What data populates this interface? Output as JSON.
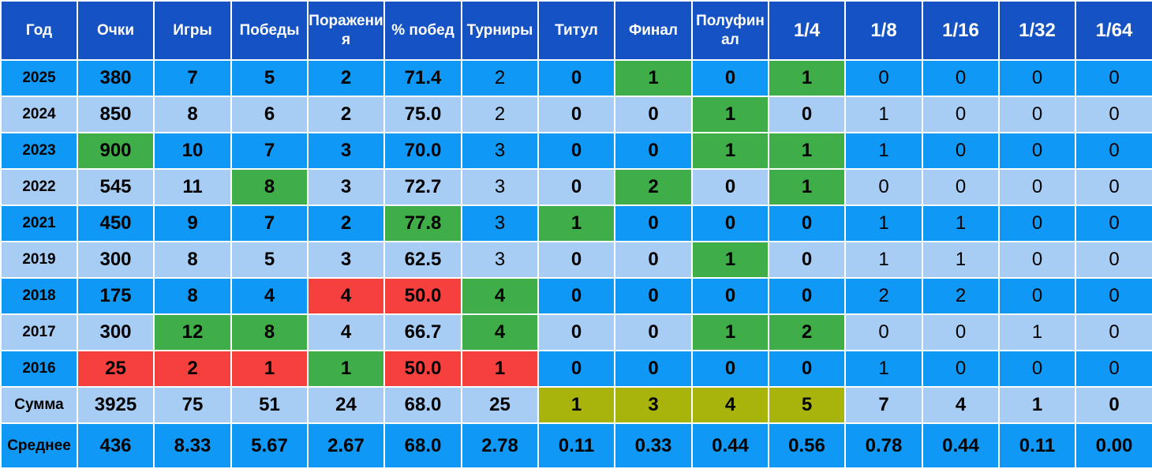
{
  "colors": {
    "header": "#1553c4",
    "row_blue": "#0f98f5",
    "row_light": "#a8cdf5",
    "best": "#3fae48",
    "worst": "#f5403d",
    "sum_highlight": "#a8b40c"
  },
  "chart_data": {
    "type": "table",
    "columns": [
      "Год",
      "Очки",
      "Игры",
      "Победы",
      "Поражения",
      "% побед",
      "Турниры",
      "Титул",
      "Финал",
      "Полуфинал",
      "1/4",
      "1/8",
      "1/16",
      "1/32",
      "1/64"
    ],
    "rows": [
      {
        "label": "2025",
        "values": [
          "380",
          "7",
          "5",
          "2",
          "71.4",
          "2",
          "0",
          "1",
          "0",
          "1",
          "0",
          "0",
          "0",
          "0"
        ],
        "highlight": {
          "8": "best",
          "10": "best"
        }
      },
      {
        "label": "2024",
        "values": [
          "850",
          "8",
          "6",
          "2",
          "75.0",
          "2",
          "0",
          "0",
          "1",
          "0",
          "1",
          "0",
          "0",
          "0"
        ],
        "highlight": {
          "9": "best"
        }
      },
      {
        "label": "2023",
        "values": [
          "900",
          "10",
          "7",
          "3",
          "70.0",
          "3",
          "0",
          "0",
          "1",
          "1",
          "1",
          "0",
          "0",
          "0"
        ],
        "highlight": {
          "1": "best",
          "9": "best",
          "10": "best"
        }
      },
      {
        "label": "2022",
        "values": [
          "545",
          "11",
          "8",
          "3",
          "72.7",
          "3",
          "0",
          "2",
          "0",
          "1",
          "0",
          "0",
          "0",
          "0"
        ],
        "highlight": {
          "3": "best",
          "8": "best",
          "10": "best"
        }
      },
      {
        "label": "2021",
        "values": [
          "450",
          "9",
          "7",
          "2",
          "77.8",
          "3",
          "1",
          "0",
          "0",
          "0",
          "1",
          "1",
          "0",
          "0"
        ],
        "highlight": {
          "5": "best",
          "7": "best"
        }
      },
      {
        "label": "2019",
        "values": [
          "300",
          "8",
          "5",
          "3",
          "62.5",
          "3",
          "0",
          "0",
          "1",
          "0",
          "1",
          "1",
          "0",
          "0"
        ],
        "highlight": {
          "9": "best"
        }
      },
      {
        "label": "2018",
        "values": [
          "175",
          "8",
          "4",
          "4",
          "50.0",
          "4",
          "0",
          "0",
          "0",
          "0",
          "2",
          "2",
          "0",
          "0"
        ],
        "highlight": {
          "4": "worst",
          "5": "worst",
          "6": "best"
        }
      },
      {
        "label": "2017",
        "values": [
          "300",
          "12",
          "8",
          "4",
          "66.7",
          "4",
          "0",
          "0",
          "1",
          "2",
          "0",
          "0",
          "1",
          "0"
        ],
        "highlight": {
          "2": "best",
          "3": "best",
          "6": "best",
          "9": "best",
          "10": "best"
        }
      },
      {
        "label": "2016",
        "values": [
          "25",
          "2",
          "1",
          "1",
          "50.0",
          "1",
          "0",
          "0",
          "0",
          "0",
          "1",
          "0",
          "0",
          "0"
        ],
        "highlight": {
          "1": "worst",
          "2": "worst",
          "3": "worst",
          "4": "best",
          "5": "worst",
          "6": "worst"
        }
      }
    ],
    "summary": [
      {
        "label": "Сумма",
        "values": [
          "3925",
          "75",
          "51",
          "24",
          "68.0",
          "25",
          "1",
          "3",
          "4",
          "5",
          "7",
          "4",
          "1",
          "0"
        ],
        "highlight": {
          "7": "sum_highlight",
          "8": "sum_highlight",
          "9": "sum_highlight",
          "10": "sum_highlight"
        }
      },
      {
        "label": "Среднее",
        "values": [
          "436",
          "8.33",
          "5.67",
          "2.67",
          "68.0",
          "2.78",
          "0.11",
          "0.33",
          "0.44",
          "0.56",
          "0.78",
          "0.44",
          "0.11",
          "0.00"
        ],
        "highlight": {}
      }
    ]
  }
}
